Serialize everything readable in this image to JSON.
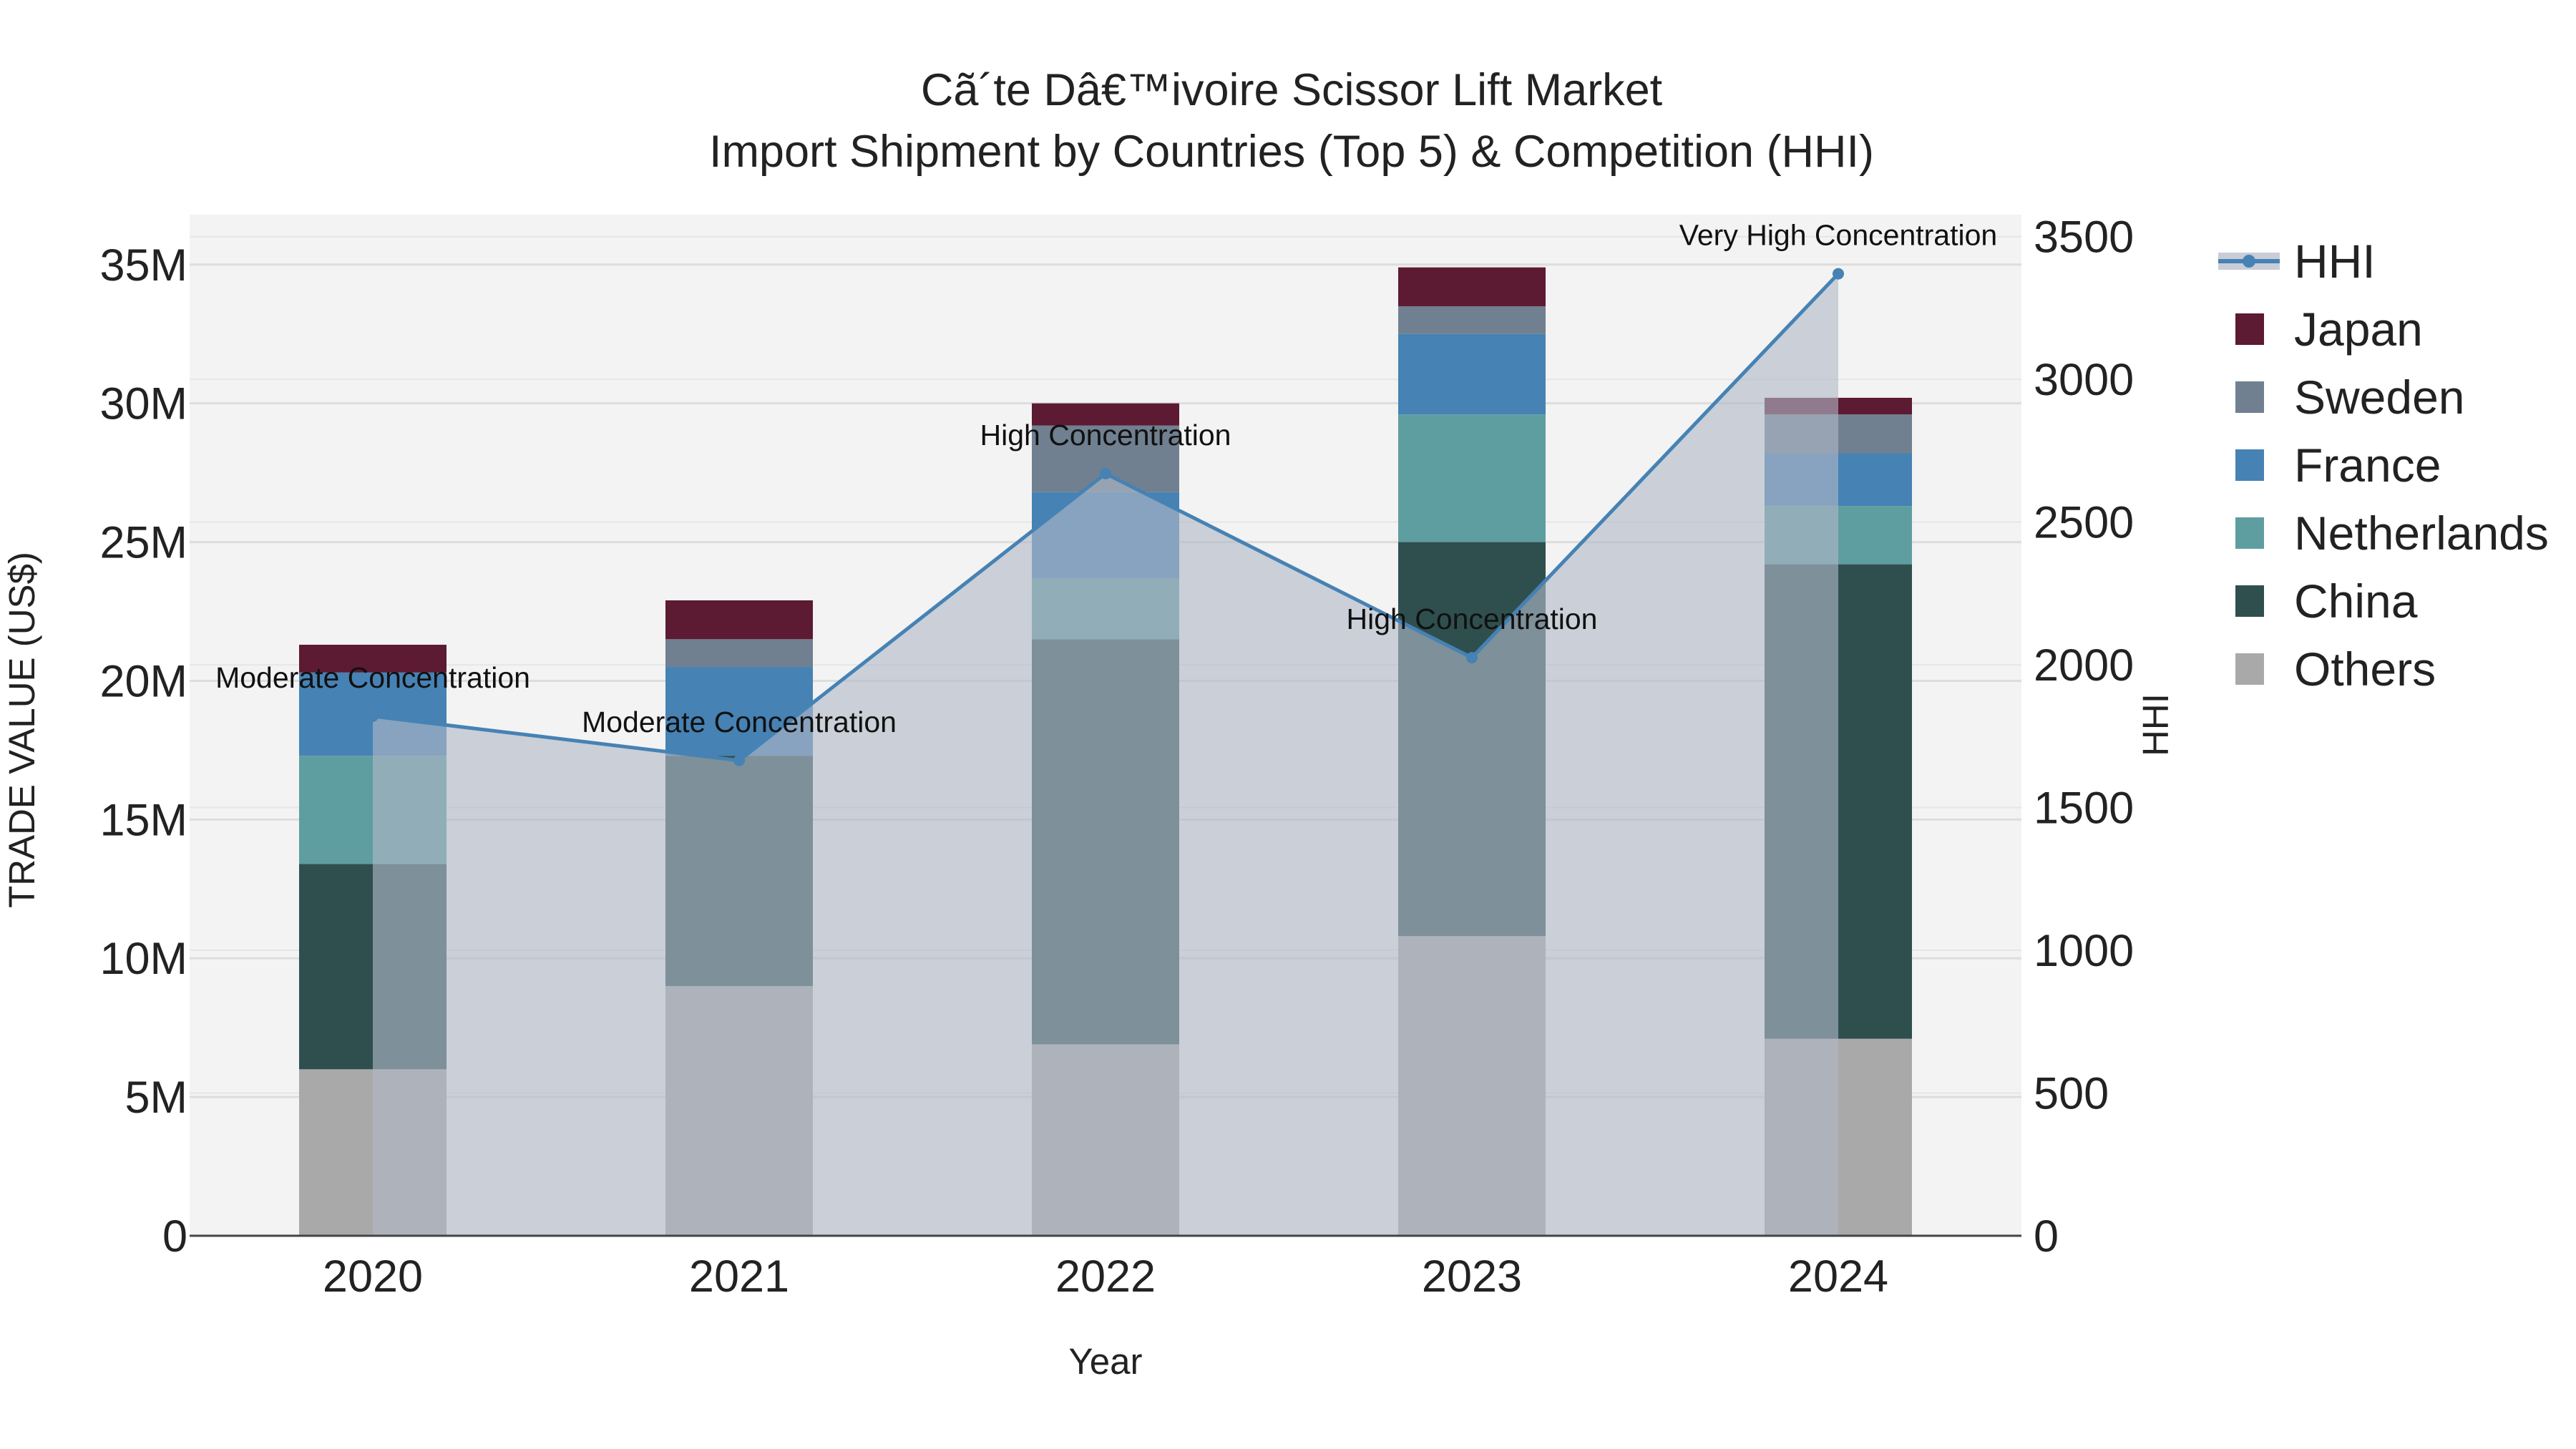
{
  "chart_data": {
    "type": "bar",
    "title": "Cã´te Dâ€™ivoire Scissor Lift Market",
    "subtitle": "Import Shipment by Countries (Top 5) & Competition (HHI)",
    "xlabel": "Year",
    "ylabel": "TRADE VALUE (US$)",
    "y2label": "HHI",
    "categories": [
      "2020",
      "2021",
      "2022",
      "2023",
      "2024"
    ],
    "ylim": [
      0,
      36800000
    ],
    "y2lim": [
      0,
      3577
    ],
    "yticks": [
      {
        "value": 0,
        "label": "0"
      },
      {
        "value": 5000000,
        "label": "5M"
      },
      {
        "value": 10000000,
        "label": "10M"
      },
      {
        "value": 15000000,
        "label": "15M"
      },
      {
        "value": 20000000,
        "label": "20M"
      },
      {
        "value": 25000000,
        "label": "25M"
      },
      {
        "value": 30000000,
        "label": "30M"
      },
      {
        "value": 35000000,
        "label": "35M"
      }
    ],
    "y2ticks": [
      {
        "value": 0,
        "label": "0"
      },
      {
        "value": 500,
        "label": "500"
      },
      {
        "value": 1000,
        "label": "1000"
      },
      {
        "value": 1500,
        "label": "1500"
      },
      {
        "value": 2000,
        "label": "2000"
      },
      {
        "value": 2500,
        "label": "2500"
      },
      {
        "value": 3000,
        "label": "3000"
      },
      {
        "value": 3500,
        "label": "3500"
      }
    ],
    "series": [
      {
        "name": "Others",
        "color": "#a9a9a9",
        "values": [
          6000000,
          9000000,
          6900000,
          10800000,
          7100000
        ]
      },
      {
        "name": "China",
        "color": "#2f4f4f",
        "values": [
          7400000,
          8300000,
          14600000,
          14200000,
          17100000
        ]
      },
      {
        "name": "Netherlands",
        "color": "#5f9ea0",
        "values": [
          3900000,
          0,
          2200000,
          4600000,
          2100000
        ]
      },
      {
        "name": "France",
        "color": "#4682b4",
        "values": [
          3000000,
          3200000,
          3100000,
          2900000,
          1900000
        ]
      },
      {
        "name": "Sweden",
        "color": "#708090",
        "values": [
          0,
          1000000,
          2400000,
          1000000,
          1400000
        ]
      },
      {
        "name": "Japan",
        "color": "#5c1a33",
        "values": [
          1000000,
          1400000,
          800000,
          1400000,
          600000
        ]
      }
    ],
    "hhi": {
      "name": "HHI",
      "color": "#4682b4",
      "values": [
        1820,
        1665,
        2670,
        2025,
        3370
      ],
      "annotations": [
        "Moderate Concentration",
        "Moderate Concentration",
        "High Concentration",
        "High Concentration",
        "Very High Concentration"
      ]
    },
    "legend": [
      "HHI",
      "Japan",
      "Sweden",
      "France",
      "Netherlands",
      "China",
      "Others"
    ]
  }
}
